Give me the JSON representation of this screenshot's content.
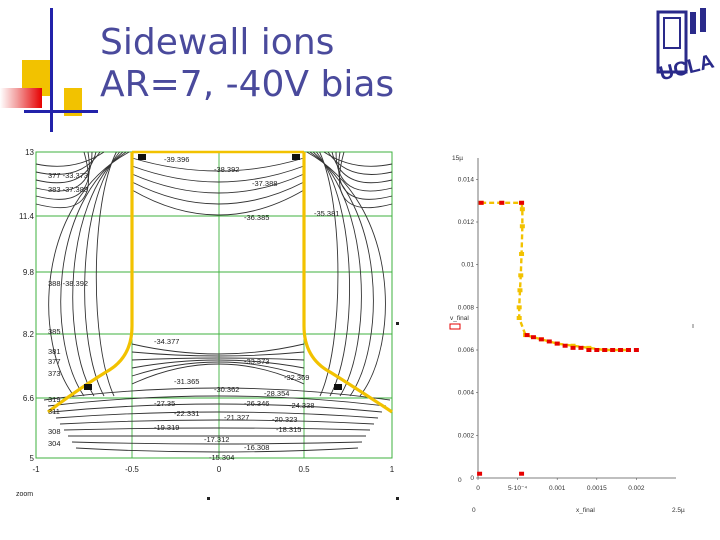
{
  "slide": {
    "title_line1": "Sidewall ions",
    "title_line2": "AR=7, -40V bias"
  },
  "logo": {
    "text": "UCLA"
  },
  "colors": {
    "title": "#4a4a9c",
    "accent_yellow": "#f2c200",
    "accent_red": "#e60000",
    "accent_blue": "#2222aa",
    "grid": "#3fb23f",
    "trench": "#f2c200",
    "contour": "#333333"
  },
  "contour_plot": {
    "y_ticks": [
      "13",
      "11.4",
      "9.8",
      "8.2",
      "6.6",
      "5"
    ],
    "x_ticks": [
      "-1",
      "-0.5",
      "0",
      "0.5",
      "1"
    ],
    "corner_label": "zoom",
    "contour_labels": [
      "-39.396",
      "-38.392",
      "-37.388",
      "-36.385",
      "-35.381",
      "-34.377",
      "-33.373",
      "-32.369",
      "-31.365",
      "-30.362",
      "-28.354",
      "-27.35",
      "-26.346",
      "-24.338",
      "-22.331",
      "-21.327",
      "-20.323",
      "-19.319",
      "-18.315",
      "-17.312",
      "-16.308",
      "-15.304"
    ],
    "left_edge_labels": [
      "385",
      "381",
      "377",
      "373",
      "319",
      "311",
      "308",
      "304",
      "388 -38.392",
      "383 -37.388",
      "377 -33.373"
    ]
  },
  "chart_data": {
    "type": "scatter",
    "title": "",
    "y_axis_top_label": "15µ",
    "ylabel": "v_final",
    "xlabel": "x_final",
    "x_axis_right_label": "2.5µ",
    "y_ticks": [
      "0.014",
      "0.012",
      "0.01",
      "0.008",
      "0.006",
      "0.004",
      "0.002",
      "0"
    ],
    "x_ticks": [
      "0",
      "5·10⁻⁴",
      "0.001",
      "0.0015",
      "0.002"
    ],
    "origin_label": "0",
    "x_corner_label": "0",
    "xlim": [
      0,
      0.0025
    ],
    "ylim": [
      0,
      0.015
    ],
    "series": [
      {
        "name": "yellow trajectory",
        "color": "#f2c200",
        "x": [
          4e-05,
          0.0003,
          0.00055,
          0.00056,
          0.00056,
          0.00055,
          0.00054,
          0.00053,
          0.00052,
          0.00052,
          0.0006,
          0.0008,
          0.001,
          0.0012,
          0.0014,
          0.0016,
          0.0019
        ],
        "y": [
          0.0129,
          0.0129,
          0.0129,
          0.0126,
          0.0118,
          0.0105,
          0.0095,
          0.0088,
          0.008,
          0.0075,
          0.0067,
          0.0065,
          0.0063,
          0.0062,
          0.0061,
          0.006,
          0.006
        ]
      },
      {
        "name": "red trajectory",
        "color": "#e60000",
        "x": [
          4e-05,
          0.0003,
          0.00055,
          0.00062,
          0.0007,
          0.0008,
          0.0009,
          0.001,
          0.0011,
          0.0012,
          0.0013,
          0.0014,
          0.0015,
          0.0016,
          0.0017,
          0.0018,
          0.0019,
          0.002,
          0.00055,
          2e-05
        ],
        "y": [
          0.0129,
          0.0129,
          0.0129,
          0.0067,
          0.0066,
          0.0065,
          0.0064,
          0.0063,
          0.0062,
          0.0061,
          0.0061,
          0.006,
          0.006,
          0.006,
          0.006,
          0.006,
          0.006,
          0.006,
          0.0002,
          0.0002
        ]
      }
    ]
  }
}
